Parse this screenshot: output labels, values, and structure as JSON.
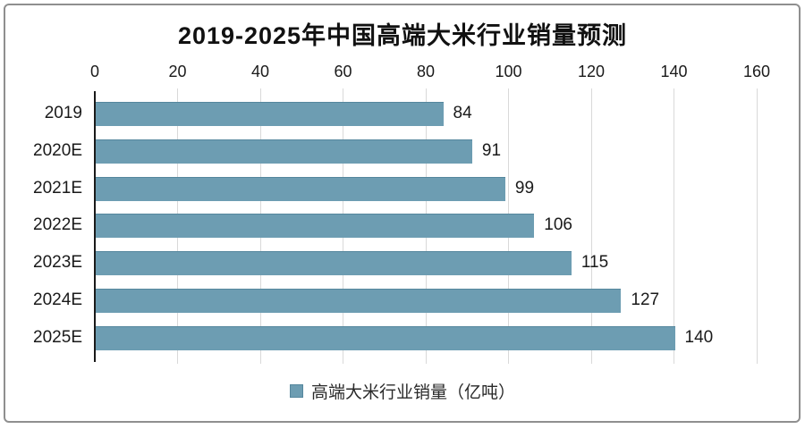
{
  "frame": {
    "border_color": "#8f8f8f",
    "background": "#ffffff"
  },
  "chart_data": {
    "type": "bar",
    "orientation": "horizontal",
    "title": "2019-2025年中国高端大米行业销量预测",
    "categories": [
      "2019",
      "2020E",
      "2021E",
      "2022E",
      "2023E",
      "2024E",
      "2025E"
    ],
    "values": [
      84,
      91,
      99,
      106,
      115,
      127,
      140
    ],
    "value_axis": {
      "position": "top",
      "min": 0,
      "max": 160,
      "tick_step": 20,
      "ticks": [
        0,
        20,
        40,
        60,
        80,
        100,
        120,
        140,
        160
      ]
    },
    "grid": true,
    "legend": {
      "position": "bottom",
      "label": "高端大米行业销量（亿吨）"
    },
    "colors": {
      "bar": "#6d9db2",
      "bar_edge": "#55879d",
      "gridline": "#d9d9d9",
      "axis_line": "#1a1a1a",
      "text": "#1a1a1a"
    }
  }
}
